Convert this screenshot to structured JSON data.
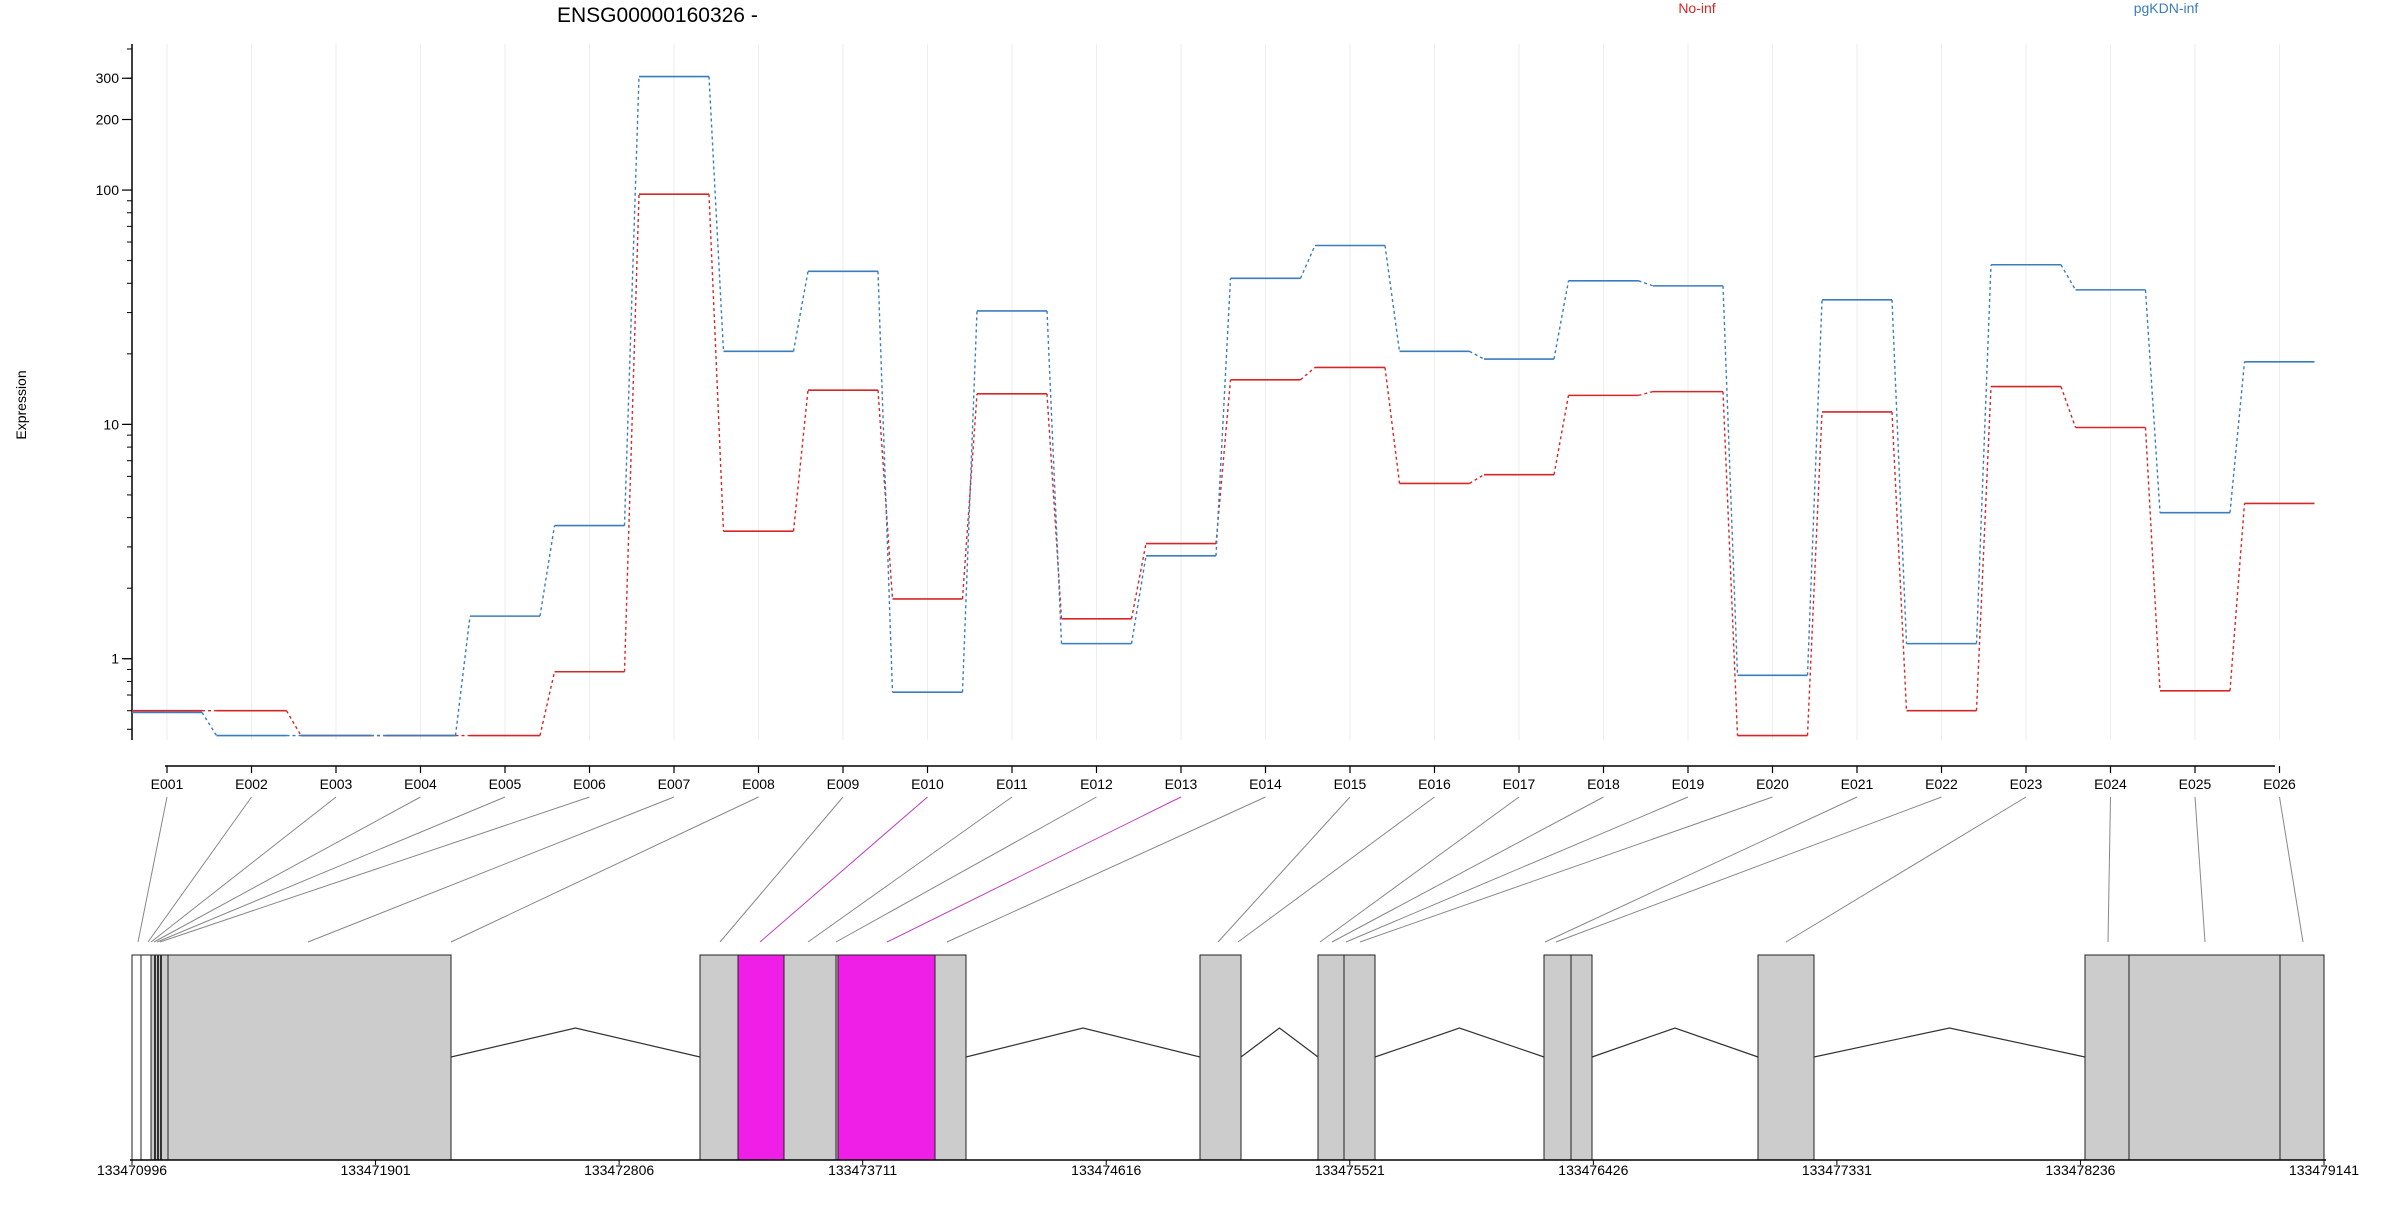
{
  "chart_data": {
    "type": "line",
    "title": "ENSG00000160326 -",
    "ylabel": "Expression",
    "yscale": "log",
    "ylim": [
      0.45,
      420
    ],
    "y_ticks": [
      1,
      10,
      100,
      200,
      300
    ],
    "grid": "vertical-light",
    "legend_placement": "top",
    "categories": [
      "E001",
      "E002",
      "E003",
      "E004",
      "E005",
      "E006",
      "E007",
      "E008",
      "E009",
      "E010",
      "E011",
      "E012",
      "E013",
      "E014",
      "E015",
      "E016",
      "E017",
      "E018",
      "E019",
      "E020",
      "E021",
      "E022",
      "E023",
      "E024",
      "E025",
      "E026"
    ],
    "series": [
      {
        "name": "No-inf",
        "color": "#d62728",
        "values": [
          0.6,
          0.6,
          0.47,
          0.47,
          0.47,
          0.88,
          96,
          3.5,
          14,
          1.8,
          13.5,
          1.48,
          3.1,
          15.5,
          17.5,
          5.6,
          6.1,
          13.3,
          13.8,
          0.47,
          11.3,
          0.6,
          14.5,
          9.7,
          0.73,
          4.6
        ]
      },
      {
        "name": "pgKDN-inf",
        "color": "#3a7dbf",
        "values": [
          0.59,
          0.47,
          0.47,
          0.47,
          1.52,
          3.7,
          305,
          20.5,
          45,
          0.72,
          30.5,
          1.16,
          2.75,
          42,
          58,
          20.5,
          19,
          41,
          39,
          0.85,
          34,
          1.16,
          48,
          37.5,
          4.2,
          18.5
        ]
      }
    ],
    "gene_model": {
      "coordinate_ticks": [
        "133470996",
        "133471901",
        "133472806",
        "133473711",
        "133474616",
        "133475521",
        "133476426",
        "133477331",
        "133478236",
        "133479141"
      ],
      "range": [
        133470996,
        133479141
      ],
      "exon_fill": "#cccccc",
      "highlight_fill": "#f01fe8",
      "highlighted_exons": [
        "E010",
        "E013"
      ]
    }
  }
}
